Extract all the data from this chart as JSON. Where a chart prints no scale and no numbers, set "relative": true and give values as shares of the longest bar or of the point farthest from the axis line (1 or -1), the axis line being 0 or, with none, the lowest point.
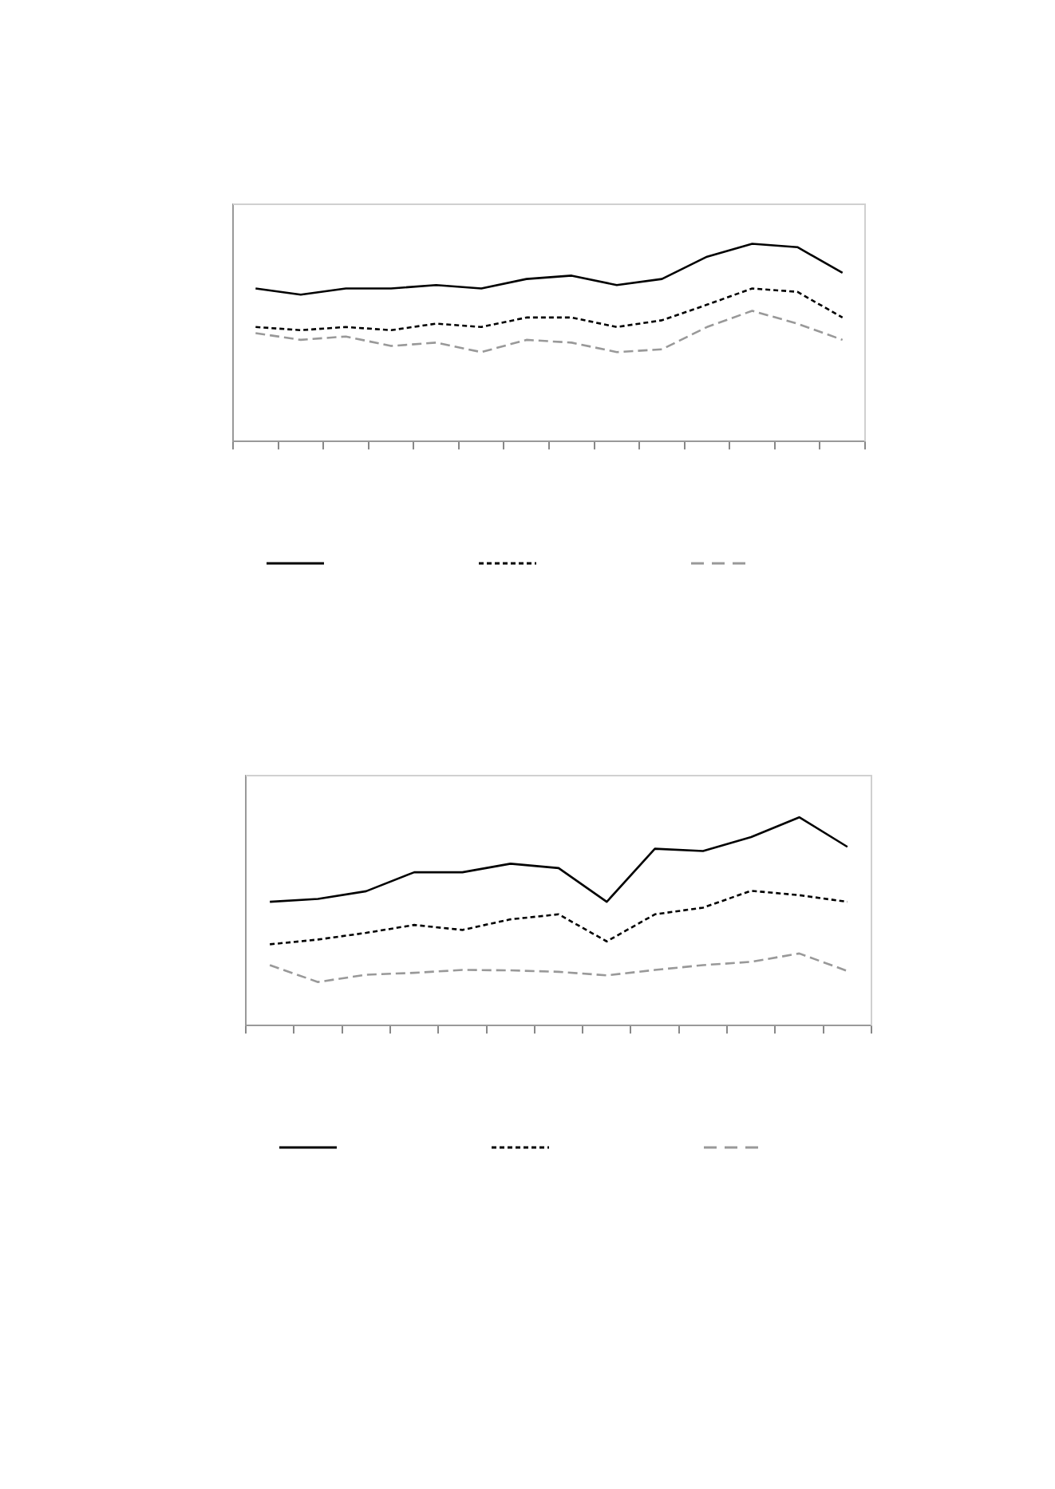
{
  "chart_data": [
    {
      "type": "line",
      "relative": true,
      "grid": false,
      "categories": [
        null,
        null,
        null,
        null,
        null,
        null,
        null,
        null,
        null,
        null,
        null,
        null,
        null,
        null
      ],
      "series": [
        {
          "color": "#000000",
          "line_style": "solid",
          "values": [
            0.774,
            0.743,
            0.774,
            0.774,
            0.791,
            0.774,
            0.822,
            0.839,
            0.791,
            0.822,
            0.935,
            1,
            0.983,
            0.853
          ]
        },
        {
          "color": "#000000",
          "line_style": "dotted",
          "values": [
            0.579,
            0.563,
            0.579,
            0.563,
            0.596,
            0.579,
            0.627,
            0.627,
            0.579,
            0.613,
            0.692,
            0.774,
            0.757,
            0.627
          ]
        },
        {
          "color": "#999999",
          "line_style": "dashed",
          "values": [
            0.548,
            0.514,
            0.531,
            0.483,
            0.5,
            0.452,
            0.514,
            0.5,
            0.452,
            0.466,
            0.579,
            0.661,
            0.596,
            0.514
          ]
        }
      ]
    },
    {
      "type": "line",
      "relative": true,
      "grid": false,
      "categories": [
        null,
        null,
        null,
        null,
        null,
        null,
        null,
        null,
        null,
        null,
        null,
        null,
        null
      ],
      "series": [
        {
          "color": "#000000",
          "line_style": "solid",
          "values": [
            0.594,
            0.608,
            0.645,
            0.736,
            0.736,
            0.777,
            0.756,
            0.594,
            0.849,
            0.838,
            0.905,
            1,
            0.858
          ]
        },
        {
          "color": "#000000",
          "line_style": "dotted",
          "values": [
            0.39,
            0.413,
            0.445,
            0.483,
            0.459,
            0.51,
            0.534,
            0.404,
            0.534,
            0.566,
            0.647,
            0.626,
            0.594
          ]
        },
        {
          "color": "#999999",
          "line_style": "dashed",
          "values": [
            0.29,
            0.209,
            0.244,
            0.253,
            0.267,
            0.265,
            0.258,
            0.241,
            0.267,
            0.29,
            0.306,
            0.346,
            0.262
          ]
        }
      ]
    }
  ]
}
